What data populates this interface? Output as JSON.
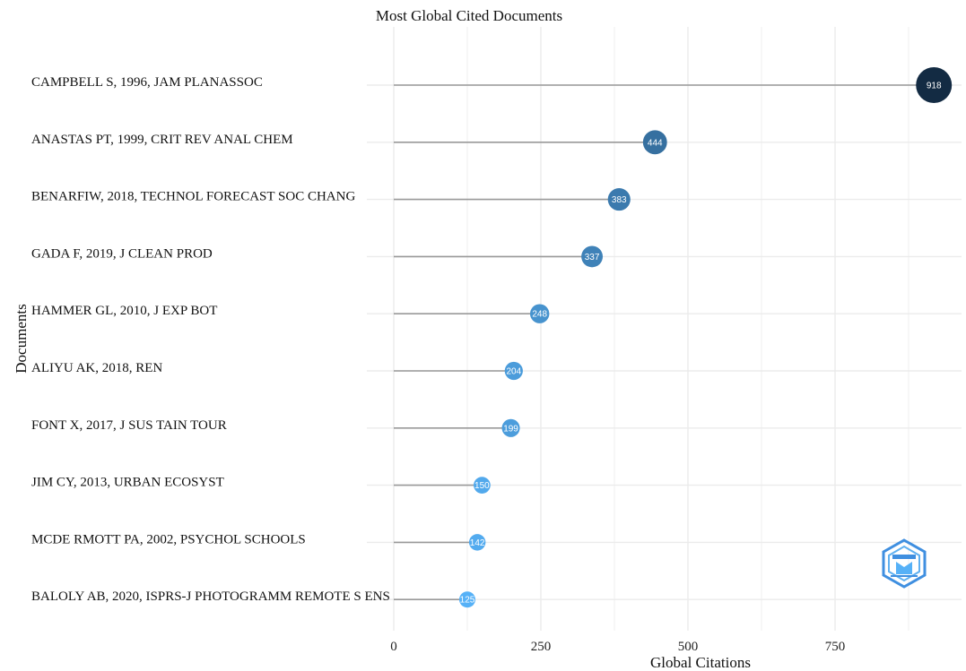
{
  "chart_data": {
    "type": "scatter",
    "title": "Most Global Cited Documents",
    "xlabel": "Global Citations",
    "ylabel": "Documents",
    "xlim": [
      0,
      960
    ],
    "xticks": [
      0,
      250,
      500,
      750
    ],
    "grid": true,
    "categories": [
      "CAMPBELL S, 1996, JAM PLANASSOC",
      "ANASTAS PT, 1999, CRIT REV ANAL CHEM",
      "BENARFIW, 2018, TECHNOL FORECAST SOC CHANG",
      "GADA F, 2019, J CLEAN PROD",
      "HAMMER GL, 2010, J EXP BOT",
      "ALIYU AK, 2018, REN",
      "FONT X, 2017, J SUS TAIN TOUR",
      "JIM CY, 2013, URBAN ECOSYST",
      "MCDE RMOTT PA, 2002, PSYCHOL SCHOOLS",
      "BALOLY AB, 2020, ISPRS-J PHOTOGRAMM REMOTE S ENS"
    ],
    "values": [
      918,
      444,
      383,
      337,
      248,
      204,
      199,
      150,
      142,
      125
    ],
    "value_labels": [
      "918",
      "444",
      "383",
      "337",
      "248",
      "204",
      "199",
      "150",
      "142",
      "125"
    ],
    "colors": {
      "low": "#56B1F7",
      "high": "#132B43",
      "stem": "#999999",
      "grid": "#ebebeb"
    }
  },
  "watermark": {
    "icon": "bibliometrix-logo-icon",
    "color": "#3f8fe0"
  }
}
